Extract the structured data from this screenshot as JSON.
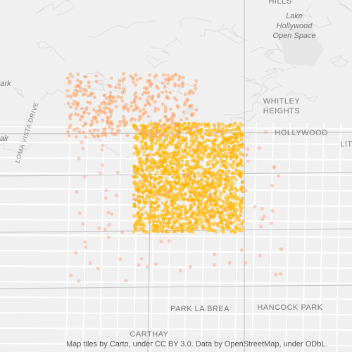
{
  "map": {
    "labels": {
      "hills": "HILLS",
      "lake": [
        "Lake",
        "Hollywood",
        "Open Space"
      ],
      "park_partial": "ark",
      "air_partial": "air",
      "whitley": [
        "WHITLEY",
        "HEIGHTS"
      ],
      "hollywood": "HOLLYWOOD",
      "lit_partial": "LIT",
      "loma_vista": "LOMA VISTA DRIVE",
      "park_la_brea": "PARK LA BREA",
      "hancock_park": "HANCOCK PARK",
      "carthay": "CARTHAY"
    },
    "attribution": "Map tiles by Carto, under CC BY 3.0. Data by OpenStreetMap, under ODbL."
  }
}
